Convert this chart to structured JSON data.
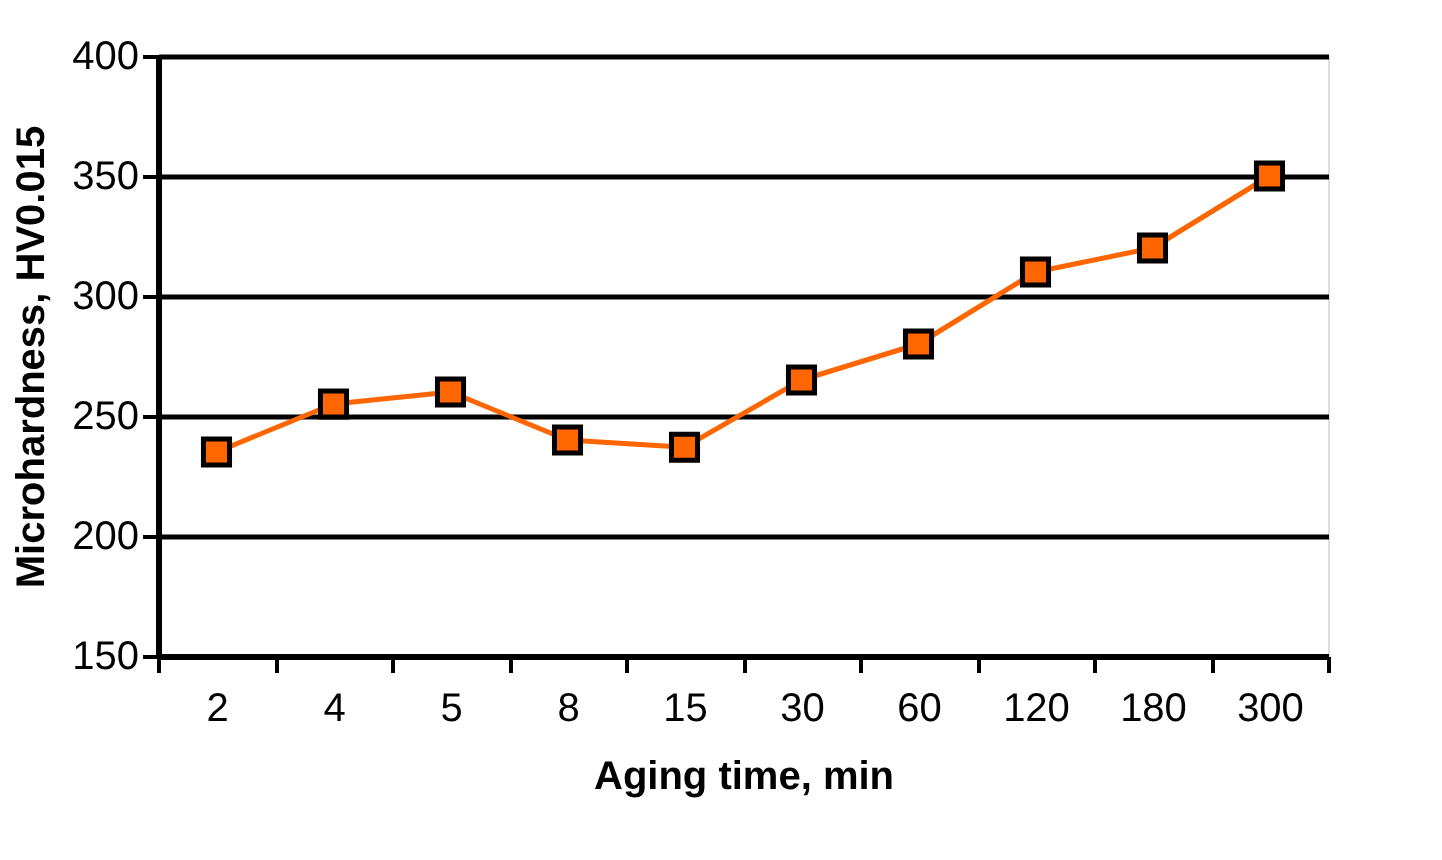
{
  "chart_data": {
    "type": "line",
    "xlabel": "Aging time, min",
    "ylabel": "Microhardness, HV0.015",
    "categories": [
      "2",
      "4",
      "5",
      "8",
      "15",
      "30",
      "60",
      "120",
      "180",
      "300"
    ],
    "series": [
      {
        "color": "#ff6600",
        "values": [
          235,
          255,
          260,
          240,
          237,
          265,
          280,
          310,
          320,
          350
        ]
      }
    ],
    "ylim": [
      150,
      400
    ],
    "yticks": [
      150,
      200,
      250,
      300,
      350,
      400
    ],
    "grid": "y",
    "marker": "square",
    "line_style": "solid"
  }
}
